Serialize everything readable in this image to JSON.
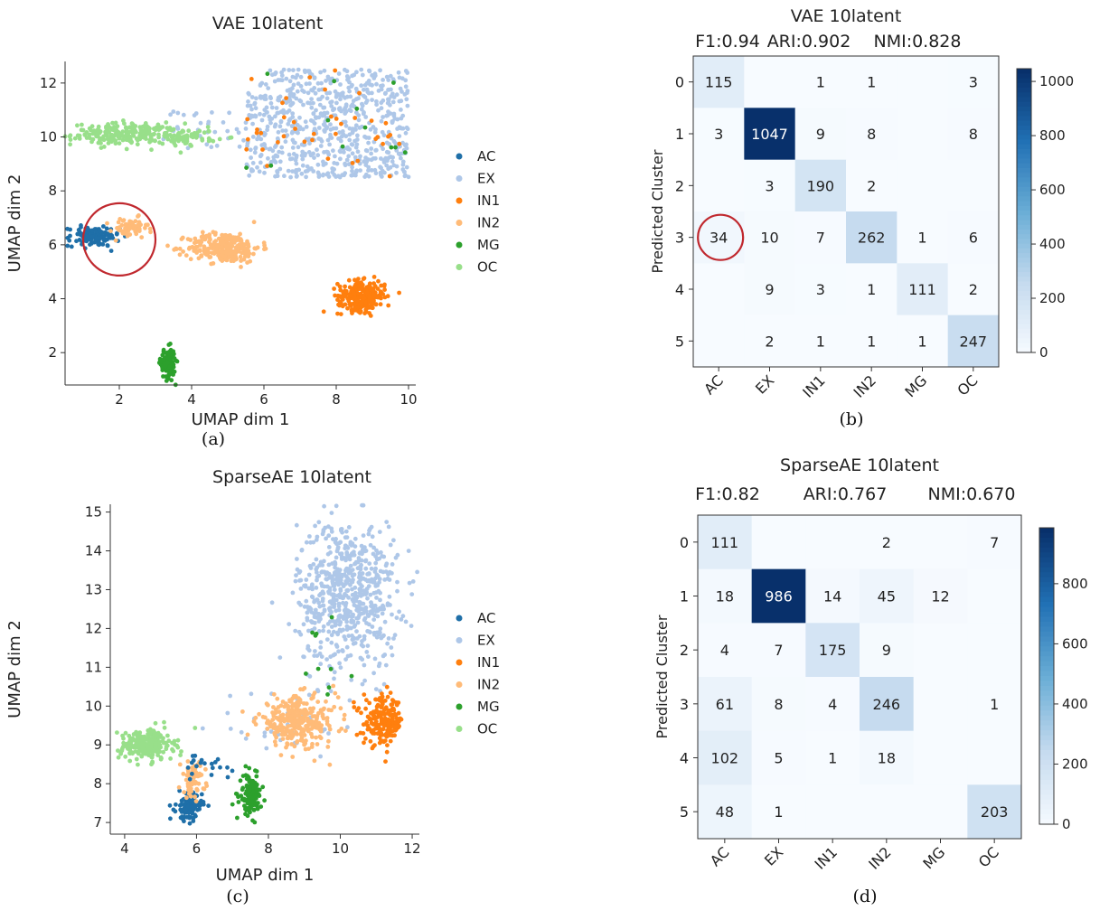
{
  "colors": {
    "AC": "#1f6fa8",
    "EX": "#aec7e8",
    "IN1": "#ff7f0e",
    "IN2": "#ffbb78",
    "MG": "#2ca02c",
    "OC": "#98df8a",
    "highlight_circle": "#c0282e",
    "cmap_low": "#f7fbff",
    "cmap_high": "#08306b"
  },
  "chart_data": [
    {
      "type": "scatter",
      "panel": "(a)",
      "title": "VAE 10latent",
      "xlabel": "UMAP dim 1",
      "ylabel": "UMAP dim 2",
      "xlim": [
        0.5,
        10.2
      ],
      "ylim": [
        0.8,
        12.8
      ],
      "xticks": [
        2,
        4,
        6,
        8,
        10
      ],
      "yticks": [
        2,
        4,
        6,
        8,
        10,
        12
      ],
      "legend": [
        "AC",
        "EX",
        "IN1",
        "IN2",
        "MG",
        "OC"
      ],
      "legend_position": "right",
      "highlight": {
        "x": 2.0,
        "y": 6.2,
        "radius": 1.0
      },
      "clusters": [
        {
          "label": "EX",
          "n": 700,
          "x": [
            5.5,
            10.0
          ],
          "y": [
            8.5,
            12.5
          ],
          "shape": "rect"
        },
        {
          "label": "EX",
          "n": 30,
          "x": [
            3.0,
            5.5
          ],
          "y": [
            9.5,
            11.0
          ],
          "shape": "rect"
        },
        {
          "label": "OC",
          "n": 220,
          "x": [
            2.2,
            1.5
          ],
          "y": [
            10.1,
            0.4
          ],
          "shape": "ellipse"
        },
        {
          "label": "OC",
          "n": 60,
          "x": [
            3.9,
            0.8
          ],
          "y": [
            10.0,
            0.3
          ],
          "shape": "ellipse"
        },
        {
          "label": "AC",
          "n": 130,
          "x": [
            1.3,
            0.7
          ],
          "y": [
            6.3,
            0.35
          ],
          "shape": "ellipse"
        },
        {
          "label": "IN2",
          "n": 60,
          "x": [
            2.3,
            0.5
          ],
          "y": [
            6.6,
            0.4
          ],
          "shape": "ellipse"
        },
        {
          "label": "IN2",
          "n": 280,
          "x": [
            4.9,
            1.0
          ],
          "y": [
            5.9,
            0.55
          ],
          "shape": "ellipse"
        },
        {
          "label": "IN1",
          "n": 260,
          "x": [
            8.7,
            0.65
          ],
          "y": [
            4.1,
            0.55
          ],
          "shape": "ellipse"
        },
        {
          "label": "MG",
          "n": 130,
          "x": [
            3.35,
            0.2
          ],
          "y": [
            1.6,
            0.55
          ],
          "shape": "ellipse"
        },
        {
          "label": "IN1",
          "n": 40,
          "x": [
            5.5,
            10.0
          ],
          "y": [
            8.5,
            12.5
          ],
          "shape": "rect"
        },
        {
          "label": "MG",
          "n": 12,
          "x": [
            5.5,
            10.0
          ],
          "y": [
            8.5,
            12.5
          ],
          "shape": "rect"
        }
      ]
    },
    {
      "type": "heatmap",
      "panel": "(b)",
      "title": "VAE 10latent",
      "metrics": [
        "F1:0.94",
        "ARI:0.902",
        "NMI:0.828"
      ],
      "xlabel": "",
      "ylabel": "Predicted Cluster",
      "x_tick_labels": [
        "AC",
        "EX",
        "IN1",
        "IN2",
        "MG",
        "OC"
      ],
      "y_tick_labels": [
        "0",
        "1",
        "2",
        "3",
        "4",
        "5"
      ],
      "colorbar_ticks": [
        0,
        200,
        400,
        600,
        800,
        1000
      ],
      "vmax": 1047,
      "highlight_cell": [
        3,
        0
      ],
      "matrix": [
        [
          115,
          null,
          1,
          1,
          null,
          3
        ],
        [
          3,
          1047,
          9,
          8,
          null,
          8
        ],
        [
          null,
          3,
          190,
          2,
          null,
          null
        ],
        [
          34,
          10,
          7,
          262,
          1,
          6
        ],
        [
          null,
          9,
          3,
          1,
          111,
          2
        ],
        [
          null,
          2,
          1,
          1,
          1,
          247
        ]
      ]
    },
    {
      "type": "scatter",
      "panel": "(c)",
      "title": "SparseAE 10latent",
      "xlabel": "UMAP dim 1",
      "ylabel": "UMAP dim 2",
      "xlim": [
        3.6,
        12.2
      ],
      "ylim": [
        6.7,
        15.2
      ],
      "xticks": [
        4,
        6,
        8,
        10,
        12
      ],
      "yticks": [
        7,
        8,
        9,
        10,
        11,
        12,
        13,
        14,
        15
      ],
      "legend": [
        "AC",
        "EX",
        "IN1",
        "IN2",
        "MG",
        "OC"
      ],
      "legend_position": "right",
      "clusters": [
        {
          "label": "EX",
          "n": 650,
          "x": [
            10.2,
            1.4
          ],
          "y": [
            12.9,
            1.9
          ],
          "shape": "ellipse"
        },
        {
          "label": "EX",
          "n": 40,
          "x": [
            8.5,
            2.0
          ],
          "y": [
            9.6,
            0.9
          ],
          "shape": "ellipse"
        },
        {
          "label": "OC",
          "n": 230,
          "x": [
            4.6,
            0.75
          ],
          "y": [
            9.0,
            0.4
          ],
          "shape": "ellipse"
        },
        {
          "label": "AC",
          "n": 110,
          "x": [
            5.8,
            0.35
          ],
          "y": [
            7.4,
            0.35
          ],
          "shape": "ellipse"
        },
        {
          "label": "IN2",
          "n": 60,
          "x": [
            5.9,
            0.35
          ],
          "y": [
            8.1,
            0.45
          ],
          "shape": "ellipse"
        },
        {
          "label": "IN2",
          "n": 300,
          "x": [
            8.8,
            1.1
          ],
          "y": [
            9.6,
            0.65
          ],
          "shape": "ellipse"
        },
        {
          "label": "IN1",
          "n": 200,
          "x": [
            11.2,
            0.55
          ],
          "y": [
            9.6,
            0.6
          ],
          "shape": "ellipse"
        },
        {
          "label": "MG",
          "n": 130,
          "x": [
            7.5,
            0.3
          ],
          "y": [
            7.7,
            0.5
          ],
          "shape": "ellipse"
        },
        {
          "label": "MG",
          "n": 10,
          "x": [
            9.6,
            0.9
          ],
          "y": [
            11.0,
            1.5
          ],
          "shape": "ellipse"
        },
        {
          "label": "AC",
          "n": 20,
          "x": [
            6.3,
            0.6
          ],
          "y": [
            8.4,
            0.35
          ],
          "shape": "ellipse"
        }
      ]
    },
    {
      "type": "heatmap",
      "panel": "(d)",
      "title": "SparseAE 10latent",
      "metrics": [
        "F1:0.82",
        "ARI:0.767",
        "NMI:0.670"
      ],
      "xlabel": "",
      "ylabel": "Predicted Cluster",
      "x_tick_labels": [
        "AC",
        "EX",
        "IN1",
        "IN2",
        "MG",
        "OC"
      ],
      "y_tick_labels": [
        "0",
        "1",
        "2",
        "3",
        "4",
        "5"
      ],
      "colorbar_ticks": [
        0,
        200,
        400,
        600,
        800
      ],
      "vmax": 986,
      "matrix": [
        [
          111,
          null,
          null,
          2,
          null,
          7
        ],
        [
          18,
          986,
          14,
          45,
          12,
          null
        ],
        [
          4,
          7,
          175,
          9,
          null,
          null
        ],
        [
          61,
          8,
          4,
          246,
          null,
          1
        ],
        [
          102,
          5,
          1,
          18,
          null,
          null
        ],
        [
          48,
          1,
          null,
          null,
          null,
          203
        ]
      ]
    }
  ]
}
